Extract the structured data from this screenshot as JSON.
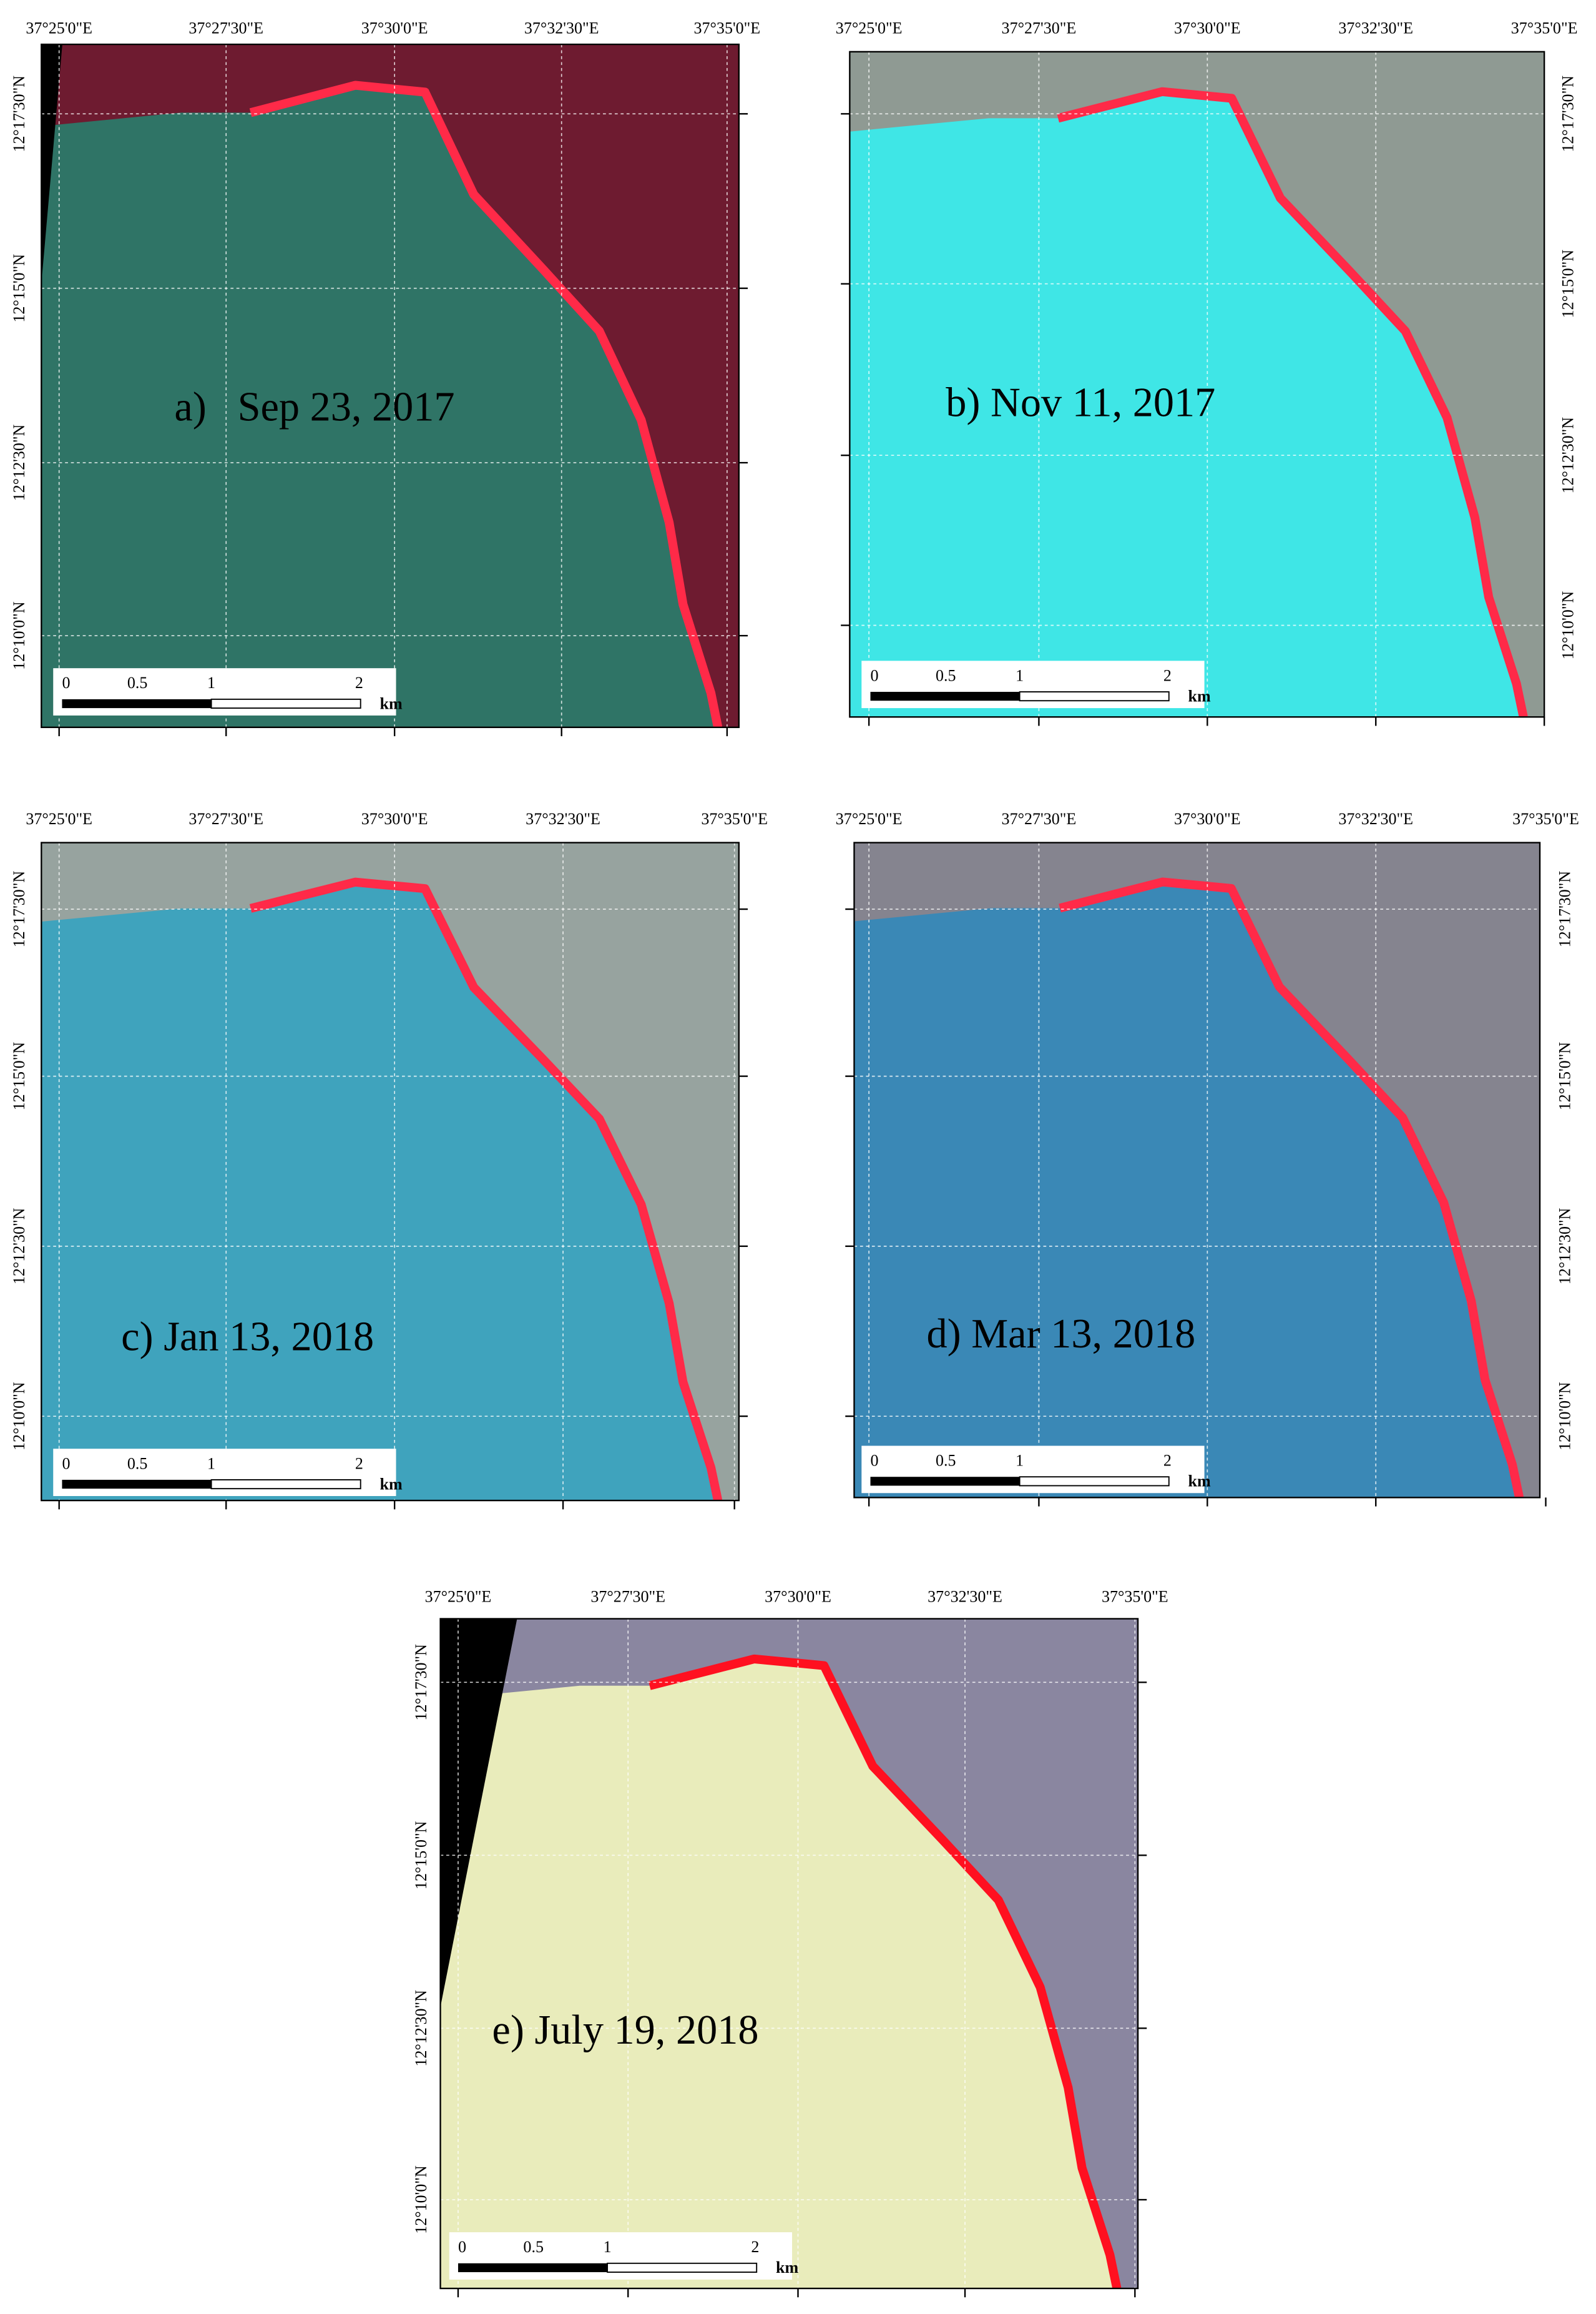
{
  "panels": [
    {
      "caption": "a)   Sep 23, 2017",
      "lon_labels": [
        "37°25'0\"E",
        "37°27'30\"E",
        "37°30'0\"E",
        "37°32'30\"E",
        "37°35'0\"E"
      ],
      "lat_labels": [
        "12°17'30\"N",
        "12°15'0\"N",
        "12°12'30\"N",
        "12°10'0\"N"
      ],
      "scale_labels": [
        "0",
        "0.5",
        "1",
        "2",
        "km"
      ]
    },
    {
      "caption": "b) Nov 11, 2017",
      "lon_labels": [
        "37°25'0\"E",
        "37°27'30\"E",
        "37°30'0\"E",
        "37°32'30\"E",
        "37°35'0\"E"
      ],
      "lat_labels": [
        "12°17'30\"N",
        "12°15'0\"N",
        "12°12'30\"N",
        "12°10'0\"N"
      ],
      "scale_labels": [
        "0",
        "0.5",
        "1",
        "2",
        "km"
      ]
    },
    {
      "caption": "c) Jan 13, 2018",
      "lon_labels": [
        "37°25'0\"E",
        "37°27'30\"E",
        "37°30'0\"E",
        "37°32'30\"E",
        "37°35'0\"E"
      ],
      "lat_labels": [
        "12°17'30\"N",
        "12°15'0\"N",
        "12°12'30\"N",
        "12°10'0\"N"
      ],
      "scale_labels": [
        "0",
        "0.5",
        "1",
        "2",
        "km"
      ]
    },
    {
      "caption": "d) Mar 13, 2018",
      "lon_labels": [
        "37°25'0\"E",
        "37°27'30\"E",
        "37°30'0\"E",
        "37°32'30\"E",
        "37°35'0\"E"
      ],
      "lat_labels": [
        "12°17'30\"N",
        "12°15'0\"N",
        "12°12'30\"N",
        "12°10'0\"N"
      ],
      "scale_labels": [
        "0",
        "0.5",
        "1",
        "2",
        "km"
      ]
    },
    {
      "caption": "e) July 19, 2018",
      "lon_labels": [
        "37°25'0\"E",
        "37°27'30\"E",
        "37°30'0\"E",
        "37°32'30\"E",
        "37°35'0\"E"
      ],
      "lat_labels": [
        "12°17'30\"N",
        "12°15'0\"N",
        "12°12'30\"N",
        "12°10'0\"N"
      ],
      "scale_labels": [
        "0",
        "0.5",
        "1",
        "2",
        "km"
      ]
    }
  ]
}
